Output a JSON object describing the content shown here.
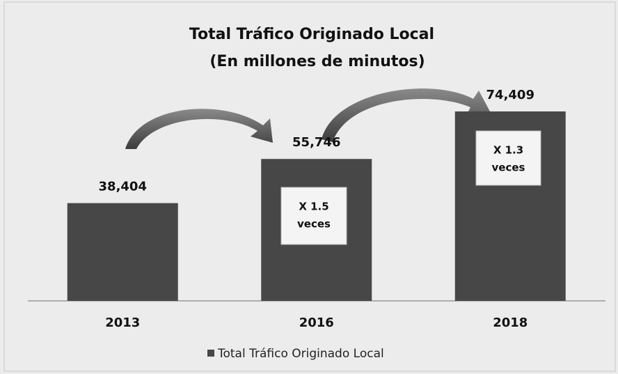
{
  "chart_data": {
    "type": "bar",
    "title": [
      "Total Tráfico Originado Local",
      "(En millones de minutos)"
    ],
    "categories": [
      "2013",
      "2016",
      "2018"
    ],
    "series": [
      {
        "name": "Total Tráfico Originado Local",
        "color": "#474747",
        "values": [
          38404,
          55746,
          74409
        ],
        "value_labels": [
          "38,404",
          "55,746",
          "74,409"
        ]
      }
    ],
    "annotations": [
      {
        "lines": [
          "X 1.5",
          "veces"
        ]
      },
      {
        "lines": [
          "X 1.3",
          "veces"
        ]
      }
    ]
  }
}
